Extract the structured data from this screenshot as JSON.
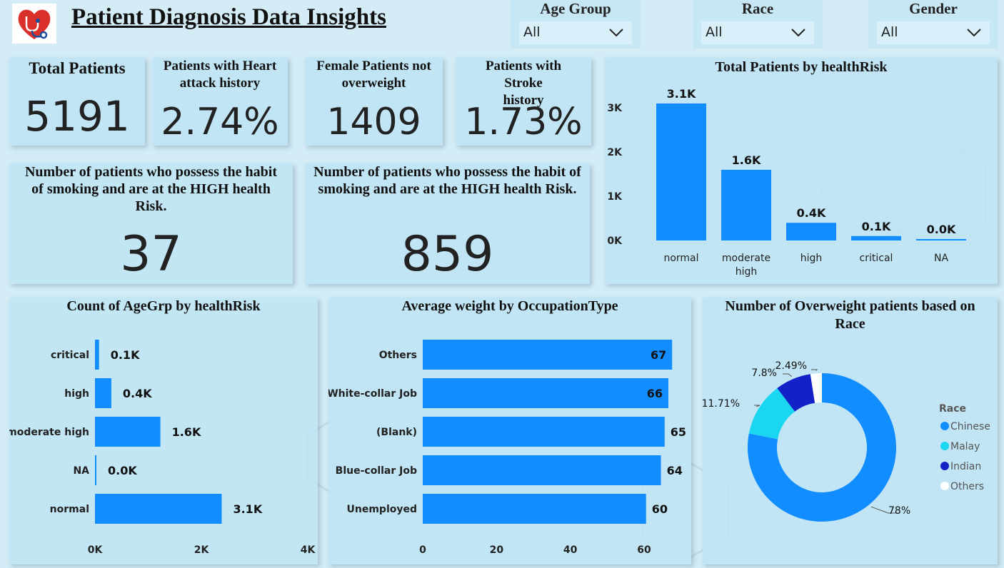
{
  "header": {
    "title": "Patient Diagnosis Data Insights",
    "logo_icon": "heart-stethoscope-icon"
  },
  "slicers": [
    {
      "label": "Age Group",
      "value": "All"
    },
    {
      "label": "Race",
      "value": "All"
    },
    {
      "label": "Gender",
      "value": "All"
    }
  ],
  "kpis": {
    "total_patients": {
      "title": "Total Patients",
      "value": "5191"
    },
    "heart_attack": {
      "title": "Patients with Heart attack history",
      "value": "2.74%"
    },
    "female_not_overweight": {
      "title": "Female Patients not overweight",
      "value": "1409"
    },
    "stroke": {
      "title_line1": "Patients with",
      "title_line2": "Stroke",
      "title_line3": "history",
      "value": "1.73%"
    },
    "smoking_high_1": {
      "title": "Number of patients who possess the habit of smoking and are at the HIGH health Risk.",
      "value": "37"
    },
    "smoking_high_2": {
      "title": "Number of patients who possess the habit of smoking and are at the HIGH health Risk.",
      "value": "859"
    }
  },
  "colors": {
    "bar": "#118dff",
    "chinese": "#118dff",
    "malay": "#1ad6f0",
    "indian": "#1222c6",
    "others": "#ffffff"
  },
  "chart_data": [
    {
      "type": "bar",
      "title": "Total Patients by healthRisk",
      "categories": [
        "normal",
        "moderate high",
        "high",
        "critical",
        "NA"
      ],
      "values": [
        3.1,
        1.6,
        0.4,
        0.1,
        0.0
      ],
      "data_labels": [
        "3.1K",
        "1.6K",
        "0.4K",
        "0.1K",
        "0.0K"
      ],
      "y_ticks": [
        "0K",
        "1K",
        "2K",
        "3K"
      ],
      "ylim": [
        0,
        3.1
      ],
      "unit": "K"
    },
    {
      "type": "bar",
      "orientation": "horizontal",
      "title": "Count of AgeGrp by healthRisk",
      "categories": [
        "critical",
        "high",
        "moderate high",
        "NA",
        "normal"
      ],
      "values": [
        0.1,
        0.4,
        1.6,
        0.0,
        3.1
      ],
      "data_labels": [
        "0.1K",
        "0.4K",
        "1.6K",
        "0.0K",
        "3.1K"
      ],
      "x_ticks": [
        "0K",
        "2K",
        "4K"
      ],
      "xlim": [
        0,
        4
      ]
    },
    {
      "type": "bar",
      "orientation": "horizontal",
      "title": "Average weight by OccupationType",
      "categories": [
        "Others",
        "White-collar Job",
        "(Blank)",
        "Blue-collar Job",
        "Unemployed"
      ],
      "values": [
        67,
        66,
        65,
        64,
        60
      ],
      "data_labels": [
        "67",
        "66",
        "65",
        "64",
        "60"
      ],
      "x_ticks": [
        "0",
        "20",
        "40",
        "60"
      ],
      "xlim": [
        0,
        66
      ]
    },
    {
      "type": "pie",
      "title": "Number of Overweight patients based on Race",
      "legend_title": "Race",
      "slices": [
        {
          "name": "Chinese",
          "value": 78,
          "label": "78%"
        },
        {
          "name": "Malay",
          "value": 11.71,
          "label": "11.71%"
        },
        {
          "name": "Indian",
          "value": 7.8,
          "label": "7.8%"
        },
        {
          "name": "Others",
          "value": 2.49,
          "label": "2.49%"
        }
      ],
      "legend_position": "right"
    }
  ]
}
